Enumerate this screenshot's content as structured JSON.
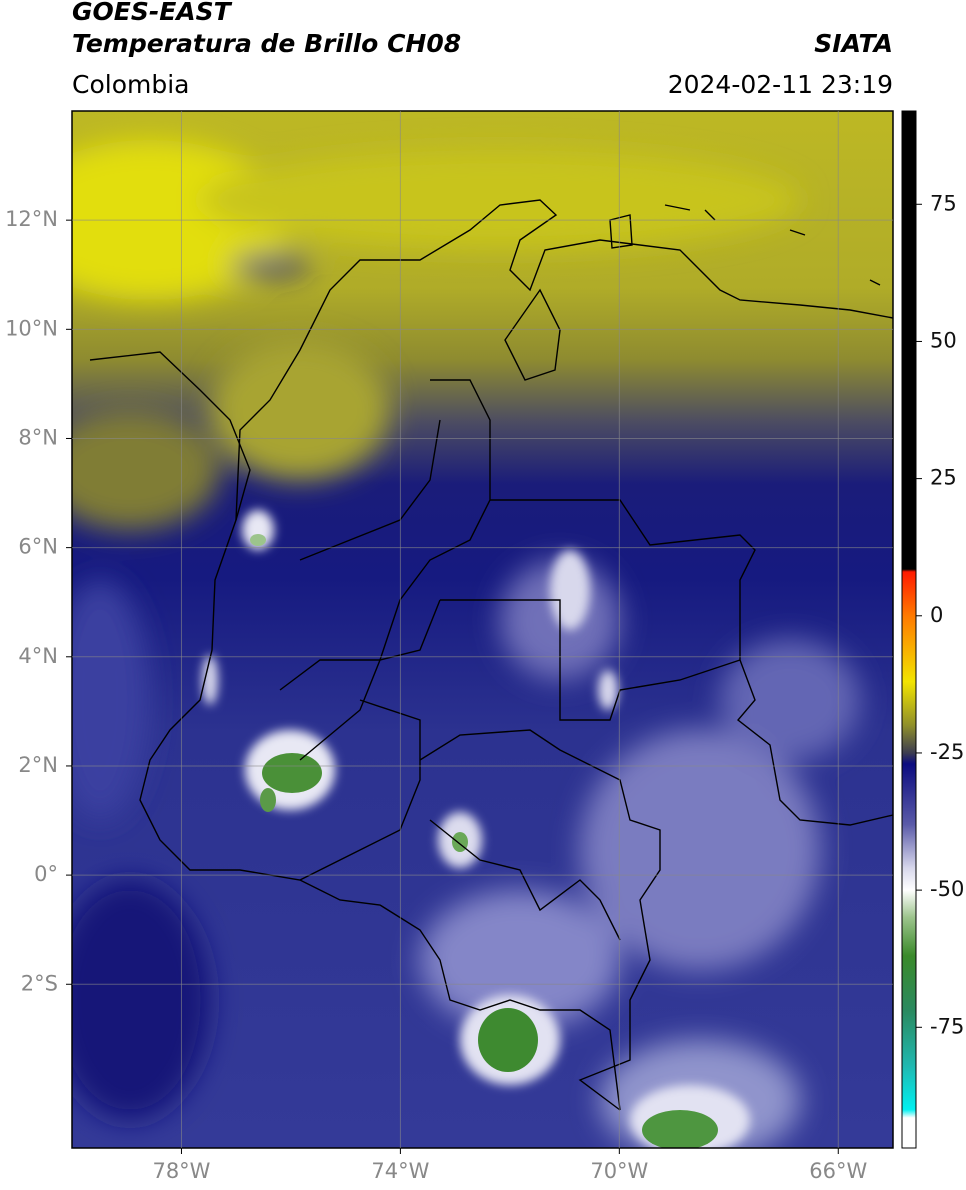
{
  "chart_data": {
    "type": "map",
    "title": "GOES-EAST",
    "subtitle": "Temperatura de Brillo CH08",
    "source": "SIATA",
    "region": "Colombia",
    "timestamp": "2024-02-11 23:19",
    "xlim": [
      -80,
      -65
    ],
    "ylim": [
      -5,
      14
    ],
    "xticks": [
      {
        "value": -78,
        "label": "78°W"
      },
      {
        "value": -74,
        "label": "74°W"
      },
      {
        "value": -70,
        "label": "70°W"
      },
      {
        "value": -66,
        "label": "66°W"
      }
    ],
    "yticks": [
      {
        "value": -2,
        "label": "2°S"
      },
      {
        "value": 0,
        "label": "0°"
      },
      {
        "value": 2,
        "label": "2°N"
      },
      {
        "value": 4,
        "label": "4°N"
      },
      {
        "value": 6,
        "label": "6°N"
      },
      {
        "value": 8,
        "label": "8°N"
      },
      {
        "value": 10,
        "label": "10°N"
      },
      {
        "value": 12,
        "label": "12°N"
      }
    ],
    "grid": true,
    "colorbar": {
      "lim": [
        -97,
        92
      ],
      "ticks": [
        -75,
        -50,
        -25,
        0,
        25,
        50,
        75
      ],
      "colormap": [
        {
          "value": 92,
          "color": "#000000"
        },
        {
          "value": 8.5,
          "color": "#000000"
        },
        {
          "value": 8,
          "color": "#ff1a00"
        },
        {
          "value": 0,
          "color": "#ff7a00"
        },
        {
          "value": -12,
          "color": "#f2e400"
        },
        {
          "value": -20,
          "color": "#8f8f2a"
        },
        {
          "value": -25,
          "color": "#3c3c50"
        },
        {
          "value": -27,
          "color": "#0c0c80"
        },
        {
          "value": -38,
          "color": "#5a5aa8"
        },
        {
          "value": -46,
          "color": "#d8d8ec"
        },
        {
          "value": -50,
          "color": "#ffffff"
        },
        {
          "value": -55,
          "color": "#9cc48c"
        },
        {
          "value": -62,
          "color": "#3a8a2a"
        },
        {
          "value": -72,
          "color": "#2a8a60"
        },
        {
          "value": -82,
          "color": "#20b8b0"
        },
        {
          "value": -90,
          "color": "#00f0f0"
        },
        {
          "value": -91.5,
          "color": "#ffffff"
        },
        {
          "value": -97,
          "color": "#ffffff"
        }
      ]
    }
  }
}
